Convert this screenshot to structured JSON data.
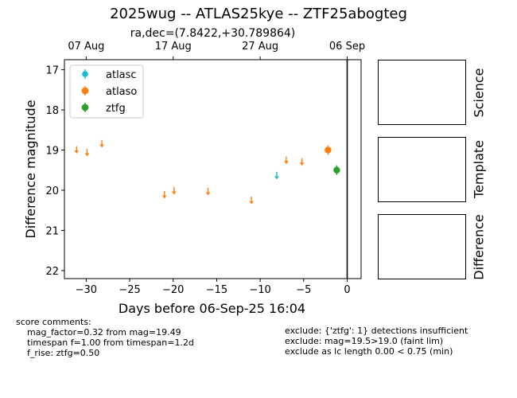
{
  "title": "2025wug -- ATLAS25kye -- ZTF25abogteg",
  "subtitle": "ra,dec=(7.8422,+30.789864)",
  "chart_data": {
    "type": "scatter",
    "xlabel": "Days before 06-Sep-25 16:04",
    "ylabel": "Difference magnitude",
    "xlim": [
      -32.5,
      1.6
    ],
    "ylim": [
      22.2,
      16.75
    ],
    "y_inverted": true,
    "x_ticks": [
      -30,
      -25,
      -20,
      -15,
      -10,
      -5,
      0
    ],
    "x_tick_labels": [
      "−30",
      "−25",
      "−20",
      "−15",
      "−10",
      "−5",
      "0"
    ],
    "y_ticks": [
      17,
      18,
      19,
      20,
      21,
      22
    ],
    "top_axis": {
      "ticks": [
        -30,
        -20,
        -10,
        0
      ],
      "labels": [
        "07 Aug",
        "17 Aug",
        "27 Aug",
        "06 Sep"
      ]
    },
    "vline_x": 0,
    "grid": false,
    "legend_position": "top-left",
    "series": [
      {
        "name": "atlasc",
        "color": "#17becf",
        "detections": [],
        "upper_limits": [
          {
            "x": -8.1,
            "y": 19.62
          }
        ]
      },
      {
        "name": "atlaso",
        "color": "#ff7f0e",
        "detections": [
          {
            "x": -2.2,
            "y": 19.0
          }
        ],
        "upper_limits": [
          {
            "x": -31.1,
            "y": 18.98
          },
          {
            "x": -29.9,
            "y": 19.05
          },
          {
            "x": -28.2,
            "y": 18.83
          },
          {
            "x": -21.0,
            "y": 20.1
          },
          {
            "x": -19.9,
            "y": 20.0
          },
          {
            "x": -16.0,
            "y": 20.02
          },
          {
            "x": -11.0,
            "y": 20.24
          },
          {
            "x": -7.0,
            "y": 19.24
          },
          {
            "x": -5.2,
            "y": 19.28
          }
        ]
      },
      {
        "name": "ztfg",
        "color": "#2ca02c",
        "detections": [
          {
            "x": -1.2,
            "y": 19.5
          }
        ],
        "upper_limits": []
      }
    ]
  },
  "side_panels": [
    "Science",
    "Template",
    "Difference"
  ],
  "comments_left": {
    "header": "score comments:",
    "lines": [
      "mag_factor=0.32 from mag=19.49",
      "timespan f=1.00 from timespan=1.2d",
      "f_rise: ztfg=0.50"
    ]
  },
  "comments_right": {
    "lines": [
      "exclude: {'ztfg': 1} detections insufficient",
      "exclude: mag=19.5>19.0 (faint lim)",
      "exclude as lc length 0.00 < 0.75 (min)"
    ]
  }
}
